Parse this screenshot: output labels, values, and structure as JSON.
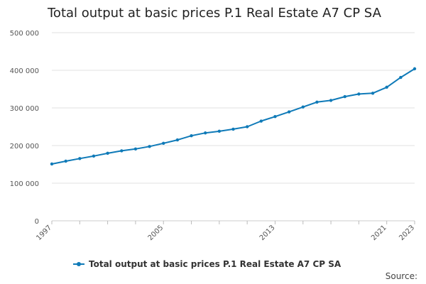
{
  "chart_data": {
    "type": "line",
    "title": "Total output at basic prices P.1 Real Estate A7 CP SA",
    "xlabel": "",
    "ylabel": "",
    "x": [
      1997,
      1998,
      1999,
      2000,
      2001,
      2002,
      2003,
      2004,
      2005,
      2006,
      2007,
      2008,
      2009,
      2010,
      2011,
      2012,
      2013,
      2014,
      2015,
      2016,
      2017,
      2018,
      2019,
      2020,
      2021,
      2022,
      2023
    ],
    "series": [
      {
        "name": "Total output at basic prices P.1 Real Estate A7 CP SA",
        "color": "#0f7ab8",
        "values": [
          151000,
          158500,
          165500,
          172000,
          179500,
          186000,
          191000,
          197500,
          206000,
          215000,
          226000,
          233500,
          238000,
          243500,
          250000,
          265000,
          277000,
          289500,
          302500,
          315500,
          320000,
          330000,
          337000,
          339000,
          355000,
          381000,
          404000
        ]
      }
    ],
    "ylim": [
      0,
      500000
    ],
    "xlim": [
      1997,
      2023
    ],
    "yticks": [
      0,
      100000,
      200000,
      300000,
      400000,
      500000
    ],
    "ytick_labels": [
      "0",
      "100 000",
      "200 000",
      "300 000",
      "400 000",
      "500 000"
    ],
    "xticks": [
      1997,
      2005,
      2013,
      2021,
      2023
    ],
    "xtick_labels": [
      "1997",
      "2005",
      "2013",
      "2021",
      "2023"
    ],
    "grid": true,
    "legend": "bottom"
  },
  "source_label": "Source:"
}
